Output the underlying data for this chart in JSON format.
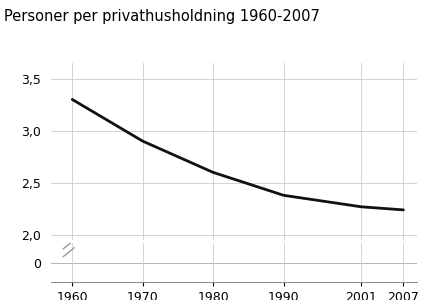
{
  "title": "Personer per privathusholdning 1960-2007",
  "x": [
    1960,
    1970,
    1980,
    1990,
    2001,
    2007
  ],
  "y": [
    3.3,
    2.9,
    2.6,
    2.38,
    2.27,
    2.24
  ],
  "line_color": "#111111",
  "line_width": 2.0,
  "background_color": "#ffffff",
  "grid_color": "#cccccc",
  "yticks_upper": [
    2.0,
    2.5,
    3.0,
    3.5
  ],
  "ytick_labels_upper": [
    "2,0",
    "2,5",
    "3,0",
    "3,5"
  ],
  "xticks": [
    1960,
    1970,
    1980,
    1990,
    2001,
    2007
  ],
  "ylim_upper": [
    1.95,
    3.65
  ],
  "ylim_lower": [
    -0.3,
    0.3
  ],
  "xlim": [
    1957,
    2009
  ],
  "title_fontsize": 10.5,
  "tick_fontsize": 9,
  "upper_height_ratio": 0.82,
  "lower_height_ratio": 0.18
}
